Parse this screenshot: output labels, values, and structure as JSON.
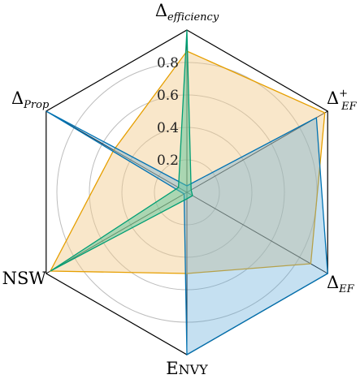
{
  "chart_data": {
    "type": "radar",
    "axes": [
      {
        "key": "efficiency",
        "base": "Δ",
        "sub": "efficiency",
        "sup": ""
      },
      {
        "key": "ef_plus",
        "base": "Δ",
        "sub": "EF",
        "sup": "+"
      },
      {
        "key": "ef",
        "base": "Δ",
        "sub": "EF",
        "sup": ""
      },
      {
        "key": "envy",
        "base": "E",
        "rest": "NVY"
      },
      {
        "key": "nsw",
        "base": "NSW"
      },
      {
        "key": "prop",
        "base": "Δ",
        "sub": "Prop",
        "sup": ""
      }
    ],
    "rmax": 1.0,
    "grid_rings": [
      0.2,
      0.4,
      0.6,
      0.8,
      1.0
    ],
    "tick_labels": [
      "0.2",
      "0.4",
      "0.6",
      "0.8"
    ],
    "series": [
      {
        "values": [
          0.87,
          0.98,
          0.88,
          0.5,
          0.97,
          0.52
        ],
        "color": "#E69F00",
        "fill": "#F2C98A",
        "fill_opacity": 0.45
      },
      {
        "values": [
          0.04,
          0.92,
          1.0,
          1.0,
          0.02,
          1.0
        ],
        "color": "#0072B2",
        "fill": "#5AA6D6",
        "fill_opacity": 0.35
      },
      {
        "values": [
          1.0,
          0.03,
          0.04,
          0.04,
          0.97,
          0.06
        ],
        "color": "#009E73",
        "fill": "#5CC59A",
        "fill_opacity": 0.5
      }
    ]
  }
}
